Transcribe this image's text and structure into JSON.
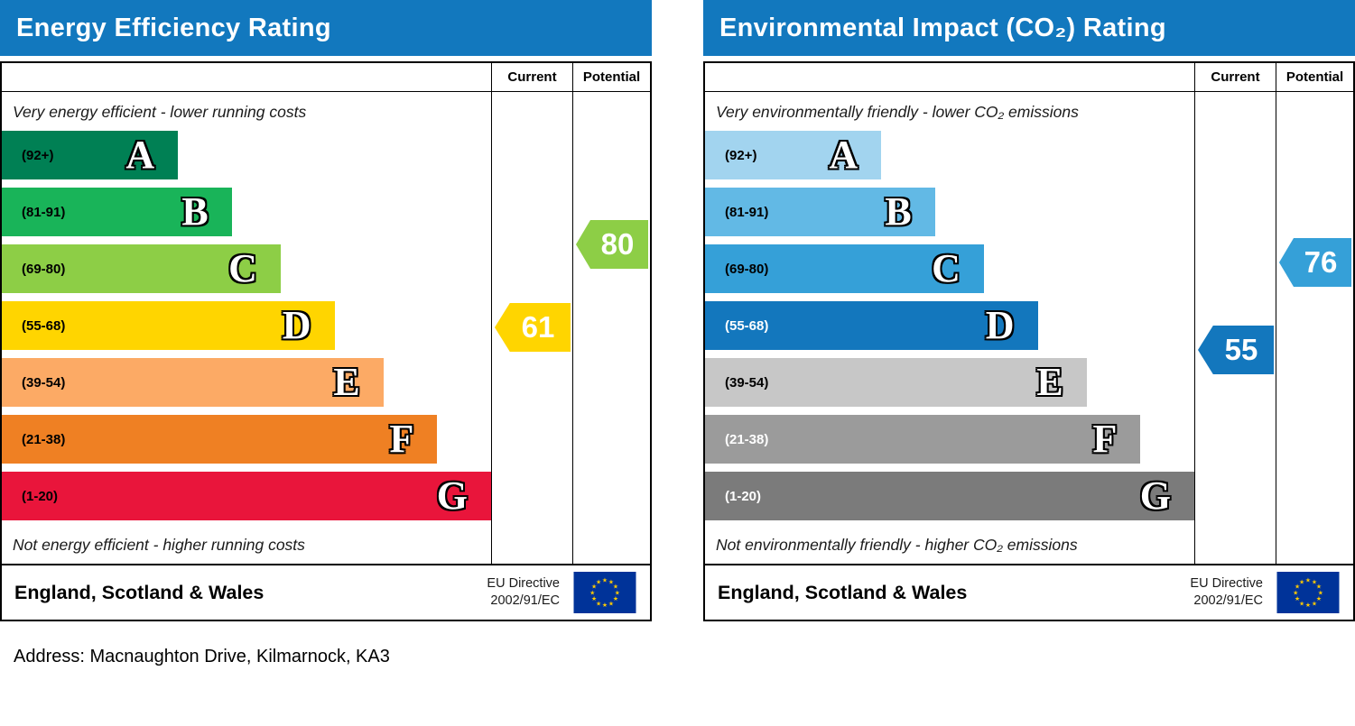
{
  "page": {
    "address_line": "Address: Macnaughton Drive, Kilmarnock, KA3"
  },
  "colors": {
    "header_blue": "#1278be",
    "eu_flag_blue": "#003399",
    "eu_flag_star": "#ffcc00"
  },
  "chart_data": [
    {
      "type": "bar",
      "chart_kind": "epc-energy-efficiency-rating",
      "title": "Energy Efficiency Rating",
      "column_headers": {
        "current": "Current",
        "potential": "Potential"
      },
      "top_note": "Very energy efficient - lower running costs",
      "bottom_note": "Not energy efficient - higher running costs",
      "bands": [
        {
          "letter": "A",
          "range_label": "(92+)",
          "min": 92,
          "max": 100,
          "color": "#008054",
          "width_pct": 36,
          "label_color": "#000000"
        },
        {
          "letter": "B",
          "range_label": "(81-91)",
          "min": 81,
          "max": 91,
          "color": "#19b459",
          "width_pct": 47,
          "label_color": "#000000"
        },
        {
          "letter": "C",
          "range_label": "(69-80)",
          "min": 69,
          "max": 80,
          "color": "#8dce46",
          "width_pct": 57,
          "label_color": "#000000"
        },
        {
          "letter": "D",
          "range_label": "(55-68)",
          "min": 55,
          "max": 68,
          "color": "#ffd500",
          "width_pct": 68,
          "label_color": "#000000"
        },
        {
          "letter": "E",
          "range_label": "(39-54)",
          "min": 39,
          "max": 54,
          "color": "#fcaa65",
          "width_pct": 78,
          "label_color": "#000000"
        },
        {
          "letter": "F",
          "range_label": "(21-38)",
          "min": 21,
          "max": 38,
          "color": "#ef8023",
          "width_pct": 89,
          "label_color": "#000000"
        },
        {
          "letter": "G",
          "range_label": "(1-20)",
          "min": 1,
          "max": 20,
          "color": "#e9153b",
          "width_pct": 100,
          "label_color": "#000000"
        }
      ],
      "current": {
        "value": 61,
        "band": "D",
        "color": "#ffd500"
      },
      "potential": {
        "value": 80,
        "band": "C",
        "color": "#8dce46"
      },
      "footer": {
        "region": "England, Scotland & Wales",
        "directive_line1": "EU Directive",
        "directive_line2": "2002/91/EC"
      }
    },
    {
      "type": "bar",
      "chart_kind": "epc-environmental-impact-co2-rating",
      "title": "Environmental Impact (CO₂) Rating",
      "column_headers": {
        "current": "Current",
        "potential": "Potential"
      },
      "top_note": "Very environmentally friendly - lower CO₂ emissions",
      "bottom_note": "Not environmentally friendly - higher CO₂ emissions",
      "bands": [
        {
          "letter": "A",
          "range_label": "(92+)",
          "min": 92,
          "max": 100,
          "color": "#a2d4ef",
          "width_pct": 36,
          "label_color": "#000000"
        },
        {
          "letter": "B",
          "range_label": "(81-91)",
          "min": 81,
          "max": 91,
          "color": "#62b9e5",
          "width_pct": 47,
          "label_color": "#000000"
        },
        {
          "letter": "C",
          "range_label": "(69-80)",
          "min": 69,
          "max": 80,
          "color": "#35a0d8",
          "width_pct": 57,
          "label_color": "#000000"
        },
        {
          "letter": "D",
          "range_label": "(55-68)",
          "min": 55,
          "max": 68,
          "color": "#1377bd",
          "width_pct": 68,
          "label_color": "#ffffff"
        },
        {
          "letter": "E",
          "range_label": "(39-54)",
          "min": 39,
          "max": 54,
          "color": "#c7c7c7",
          "width_pct": 78,
          "label_color": "#000000"
        },
        {
          "letter": "F",
          "range_label": "(21-38)",
          "min": 21,
          "max": 38,
          "color": "#9b9b9b",
          "width_pct": 89,
          "label_color": "#ffffff"
        },
        {
          "letter": "G",
          "range_label": "(1-20)",
          "min": 1,
          "max": 20,
          "color": "#7b7b7b",
          "width_pct": 100,
          "label_color": "#ffffff"
        }
      ],
      "current": {
        "value": 55,
        "band": "D",
        "color": "#1377bd"
      },
      "potential": {
        "value": 76,
        "band": "C",
        "color": "#35a0d8"
      },
      "footer": {
        "region": "England, Scotland & Wales",
        "directive_line1": "EU Directive",
        "directive_line2": "2002/91/EC"
      }
    }
  ]
}
